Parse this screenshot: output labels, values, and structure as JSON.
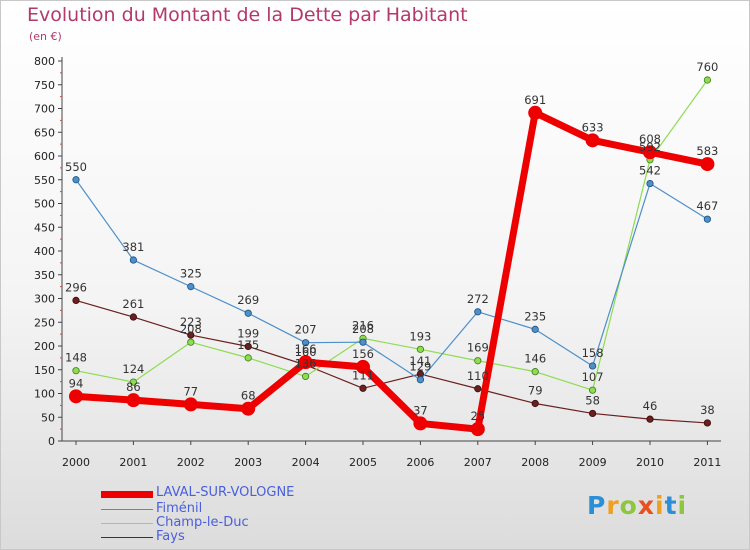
{
  "chart_data": {
    "type": "line",
    "title": "Evolution du Montant de la Dette par Habitant",
    "subtitle": "(en €)",
    "categories": [
      "2000",
      "2001",
      "2002",
      "2003",
      "2004",
      "2005",
      "2006",
      "2007",
      "2008",
      "2009",
      "2010",
      "2011"
    ],
    "ylim": [
      0,
      800
    ],
    "yticks": [
      "0",
      "50",
      "100",
      "150",
      "200",
      "250",
      "300",
      "350",
      "400",
      "450",
      "500",
      "550",
      "600",
      "650",
      "700",
      "750",
      "800"
    ],
    "grid": false,
    "legend_position": "bottom-left",
    "series": [
      {
        "name": "LAVAL-SUR-VOLOGNE",
        "color": "#ee0000",
        "values": [
          94,
          86,
          77,
          68,
          166,
          156,
          37,
          25,
          691,
          633,
          608,
          583
        ]
      },
      {
        "name": "Fiménil",
        "color": "#4d8fca",
        "values": [
          550,
          381,
          325,
          269,
          207,
          208,
          129,
          272,
          235,
          158,
          542,
          467
        ]
      },
      {
        "name": "Champ-le-Duc",
        "color": "#8edc52",
        "values": [
          148,
          124,
          208,
          175,
          136,
          216,
          193,
          169,
          146,
          107,
          592,
          760
        ]
      },
      {
        "name": "Fays",
        "color": "#6b1f1f",
        "values": [
          296,
          261,
          223,
          199,
          160,
          111,
          141,
          110,
          79,
          58,
          46,
          38
        ]
      }
    ]
  },
  "brand": {
    "text": "Proxiti",
    "letters": [
      "P",
      "r",
      "o",
      "x",
      "i",
      "t",
      "i"
    ],
    "colors": [
      "#2b8fd6",
      "#f0a020",
      "#8ec63f",
      "#e8501e",
      "#f0a020",
      "#2b8fd6",
      "#8ec63f"
    ]
  }
}
